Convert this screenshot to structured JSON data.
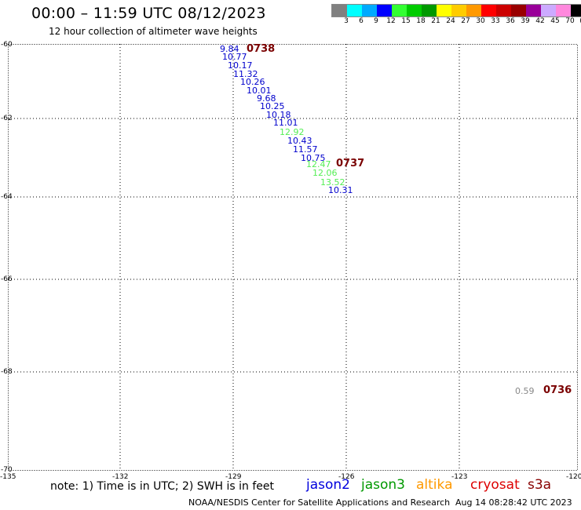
{
  "header": {
    "title": "00:00 – 11:59 UTC 08/12/2023",
    "subtitle": "12 hour collection of altimeter wave heights"
  },
  "legend": {
    "colors": [
      "#808080",
      "#00ffff",
      "#00aaff",
      "#0000ff",
      "#33ff33",
      "#00cc00",
      "#009900",
      "#ffff00",
      "#ffcc00",
      "#ff9900",
      "#ff0000",
      "#cc0000",
      "#990000",
      "#990099",
      "#ccaaff",
      "#ff88dd",
      "#000000"
    ],
    "labels": [
      "3",
      "6",
      "9",
      "12",
      "15",
      "18",
      "21",
      "24",
      "27",
      "30",
      "33",
      "36",
      "39",
      "42",
      "45",
      "70",
      "(ft)"
    ]
  },
  "map": {
    "lat_labels": [
      "-60",
      "-62",
      "-64",
      "-66",
      "-68",
      "-70"
    ],
    "lon_labels": [
      "-135",
      "-132",
      "-129",
      "-126",
      "-123",
      "-120"
    ],
    "wave_heights": [
      {
        "value": "9.84",
        "color": "#0000cc"
      },
      {
        "value": "10.77",
        "color": "#0000cc"
      },
      {
        "value": "10.17",
        "color": "#0000cc"
      },
      {
        "value": "11.32",
        "color": "#0000cc"
      },
      {
        "value": "10.26",
        "color": "#0000cc"
      },
      {
        "value": "10.01",
        "color": "#0000cc"
      },
      {
        "value": "9.68",
        "color": "#0000cc"
      },
      {
        "value": "10.25",
        "color": "#0000cc"
      },
      {
        "value": "10.18",
        "color": "#0000cc"
      },
      {
        "value": "11.01",
        "color": "#0000cc"
      },
      {
        "value": "12.92",
        "color": "#55ee55"
      },
      {
        "value": "10.43",
        "color": "#0000cc"
      },
      {
        "value": "11.57",
        "color": "#0000cc"
      },
      {
        "value": "10.75",
        "color": "#0000cc"
      },
      {
        "value": "12.47",
        "color": "#55ee55"
      },
      {
        "value": "12.06",
        "color": "#55ee55"
      },
      {
        "value": "13.52",
        "color": "#55ee55"
      },
      {
        "value": "10.31",
        "color": "#0000cc"
      },
      {
        "value": "0.59",
        "color": "#888888"
      }
    ],
    "time_tags": [
      "0738",
      "0737",
      "0736"
    ]
  },
  "footer": {
    "note": "note: 1) Time is in UTC; 2) SWH is in feet",
    "satellites": [
      {
        "name": "jason2",
        "color": "#0000dd"
      },
      {
        "name": "jason3",
        "color": "#009900"
      },
      {
        "name": "altika",
        "color": "#ff9900"
      },
      {
        "name": "cryosat",
        "color": "#dd0000"
      },
      {
        "name": "s3a",
        "color": "#880000"
      }
    ],
    "credit": "NOAA/NESDIS Center for Satellite Applications and Research",
    "timestamp": "Aug 14 08:28:42 UTC 2023"
  }
}
